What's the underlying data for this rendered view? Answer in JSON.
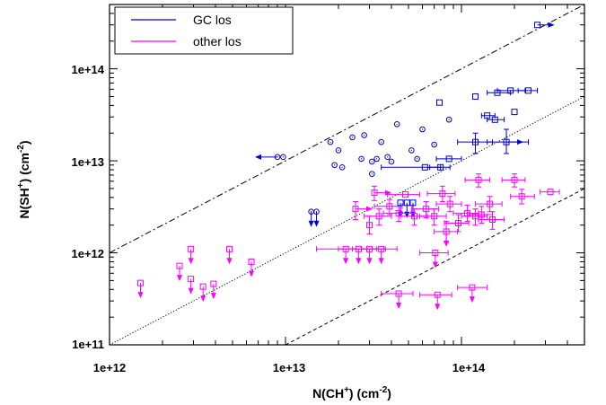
{
  "chart_data": {
    "type": "scatter",
    "xscale": "log",
    "yscale": "log",
    "xlim": [
      1000000000000.0,
      500000000000000.0
    ],
    "ylim": [
      100000000000.0,
      500000000000000.0
    ],
    "xticks": [
      1000000000000.0,
      10000000000000.0,
      100000000000000.0
    ],
    "yticks": [
      100000000000.0,
      1000000000000.0,
      10000000000000.0,
      100000000000000.0
    ],
    "xtick_labels": [
      "1e+12",
      "1e+13",
      "1e+14"
    ],
    "ytick_labels": [
      "1e+11",
      "1e+12",
      "1e+13",
      "1e+14"
    ],
    "xlabel": {
      "base": "N(CH",
      "sup": "+",
      "unit": ")  (cm",
      "exp": "-2",
      "end": ")"
    },
    "ylabel": {
      "base": "N(SH",
      "sup": "+",
      "unit": ")  (cm",
      "exp": "-2",
      "end": ")"
    },
    "legend": {
      "position": "top-left",
      "entries": [
        {
          "label": "GC los",
          "color": "#0000cc"
        },
        {
          "label": "other los",
          "color": "#ff00ff"
        }
      ]
    },
    "reference_lines": [
      {
        "style": "dash-dot",
        "ratio": 1.0
      },
      {
        "style": "dotted",
        "ratio": 0.1
      },
      {
        "style": "dashed",
        "ratio": 0.01
      }
    ],
    "series": [
      {
        "name": "GC los",
        "color": "#0000cc",
        "points": [
          {
            "x": 270000000000000.0,
            "y": 300000000000000.0,
            "marker": "square",
            "lim": "right"
          },
          {
            "x": 75000000000000.0,
            "y": 43000000000000.0,
            "marker": "square"
          },
          {
            "x": 120000000000000.0,
            "y": 50000000000000.0,
            "marker": "square"
          },
          {
            "x": 160000000000000.0,
            "y": 55000000000000.0,
            "marker": "square",
            "xerr": [
              140000000000000.0,
              190000000000000.0
            ]
          },
          {
            "x": 190000000000000.0,
            "y": 58000000000000.0,
            "marker": "square",
            "xerr": [
              160000000000000.0,
              230000000000000.0
            ]
          },
          {
            "x": 240000000000000.0,
            "y": 58000000000000.0,
            "marker": "square",
            "xerr": [
              210000000000000.0,
              270000000000000.0
            ]
          },
          {
            "x": 140000000000000.0,
            "y": 31000000000000.0,
            "marker": "square",
            "xerr": [
              130000000000000.0,
              155000000000000.0
            ]
          },
          {
            "x": 155000000000000.0,
            "y": 28000000000000.0,
            "marker": "square",
            "xerr": [
              140000000000000.0,
              175000000000000.0
            ]
          },
          {
            "x": 200000000000000.0,
            "y": 34000000000000.0,
            "marker": "square"
          },
          {
            "x": 120000000000000.0,
            "y": 16000000000000.0,
            "marker": "square",
            "xerr": [
              95000000000000.0,
              150000000000000.0
            ],
            "yerr": [
              12000000000000.0,
              20000000000000.0
            ]
          },
          {
            "x": 180000000000000.0,
            "y": 16000000000000.0,
            "marker": "square",
            "xerr": [
              140000000000000.0,
              240000000000000.0
            ],
            "yerr": [
              12000000000000.0,
              22000000000000.0
            ],
            "lim": "right"
          },
          {
            "x": 85000000000000.0,
            "y": 28000000000000.0,
            "marker": "circle"
          },
          {
            "x": 9000000000000.0,
            "y": 11000000000000.0,
            "marker": "circle",
            "lim": "left"
          },
          {
            "x": 9700000000000.0,
            "y": 11000000000000.0,
            "marker": "circle"
          },
          {
            "x": 14000000000000.0,
            "y": 2800000000000.0,
            "marker": "circle",
            "lim": "down"
          },
          {
            "x": 15000000000000.0,
            "y": 2800000000000.0,
            "marker": "circle",
            "lim": "down"
          },
          {
            "x": 18000000000000.0,
            "y": 16000000000000.0,
            "marker": "circle"
          },
          {
            "x": 20000000000000.0,
            "y": 13000000000000.0,
            "marker": "circle"
          },
          {
            "x": 24000000000000.0,
            "y": 18000000000000.0,
            "marker": "circle"
          },
          {
            "x": 28000000000000.0,
            "y": 19000000000000.0,
            "marker": "circle"
          },
          {
            "x": 35000000000000.0,
            "y": 16000000000000.0,
            "marker": "circle"
          },
          {
            "x": 43000000000000.0,
            "y": 25000000000000.0,
            "marker": "circle"
          },
          {
            "x": 52000000000000.0,
            "y": 13000000000000.0,
            "marker": "circle"
          },
          {
            "x": 60000000000000.0,
            "y": 22000000000000.0,
            "marker": "circle"
          },
          {
            "x": 70000000000000.0,
            "y": 15000000000000.0,
            "marker": "circle"
          },
          {
            "x": 19000000000000.0,
            "y": 9000000000000.0,
            "marker": "circle"
          },
          {
            "x": 21000000000000.0,
            "y": 8500000000000.0,
            "marker": "circle"
          },
          {
            "x": 27000000000000.0,
            "y": 10500000000000.0,
            "marker": "circle"
          },
          {
            "x": 31000000000000.0,
            "y": 9800000000000.0,
            "marker": "circle"
          },
          {
            "x": 33000000000000.0,
            "y": 10500000000000.0,
            "marker": "circle"
          },
          {
            "x": 38000000000000.0,
            "y": 11000000000000.0,
            "marker": "circle"
          },
          {
            "x": 40000000000000.0,
            "y": 9800000000000.0,
            "marker": "circle"
          },
          {
            "x": 56000000000000.0,
            "y": 10500000000000.0,
            "marker": "circle"
          },
          {
            "x": 31000000000000.0,
            "y": 7200000000000.0,
            "marker": "circle"
          },
          {
            "x": 62000000000000.0,
            "y": 8500000000000.0,
            "marker": "square",
            "xerr": [
              35000000000000.0,
              76000000000000.0
            ]
          },
          {
            "x": 76000000000000.0,
            "y": 8500000000000.0,
            "marker": "square",
            "xerr": [
              66000000000000.0,
              86000000000000.0
            ]
          },
          {
            "x": 85000000000000.0,
            "y": 10500000000000.0,
            "marker": "square",
            "xerr": [
              72000000000000.0,
              100000000000000.0
            ]
          },
          {
            "x": 45000000000000.0,
            "y": 3500000000000.0,
            "marker": "square",
            "lim": "down"
          },
          {
            "x": 49000000000000.0,
            "y": 3500000000000.0,
            "marker": "square",
            "lim": "down"
          },
          {
            "x": 53000000000000.0,
            "y": 3500000000000.0,
            "marker": "square",
            "lim": "down"
          }
        ]
      },
      {
        "name": "other los",
        "color": "#ff00ff",
        "points": [
          {
            "x": 1500000000000.0,
            "y": 470000000000.0,
            "marker": "square",
            "lim": "down"
          },
          {
            "x": 2500000000000.0,
            "y": 720000000000.0,
            "marker": "square",
            "lim": "down"
          },
          {
            "x": 2900000000000.0,
            "y": 1100000000000.0,
            "marker": "square",
            "lim": "down"
          },
          {
            "x": 2900000000000.0,
            "y": 520000000000.0,
            "marker": "square",
            "lim": "down"
          },
          {
            "x": 3400000000000.0,
            "y": 430000000000.0,
            "marker": "square",
            "lim": "down"
          },
          {
            "x": 3900000000000.0,
            "y": 460000000000.0,
            "marker": "square",
            "lim": "down"
          },
          {
            "x": 4800000000000.0,
            "y": 1100000000000.0,
            "marker": "square",
            "lim": "down"
          },
          {
            "x": 6400000000000.0,
            "y": 800000000000.0,
            "marker": "square",
            "lim": "down"
          },
          {
            "x": 22000000000000.0,
            "y": 1100000000000.0,
            "marker": "square",
            "lim": "down",
            "xerr": [
              15000000000000.0,
              29000000000000.0
            ]
          },
          {
            "x": 26000000000000.0,
            "y": 1100000000000.0,
            "marker": "square",
            "lim": "down",
            "xerr": [
              20000000000000.0,
              33000000000000.0
            ]
          },
          {
            "x": 30000000000000.0,
            "y": 1100000000000.0,
            "marker": "square",
            "lim": "down",
            "xerr": [
              24000000000000.0,
              37000000000000.0
            ]
          },
          {
            "x": 35000000000000.0,
            "y": 1100000000000.0,
            "marker": "square",
            "lim": "down",
            "xerr": [
              27000000000000.0,
              43000000000000.0
            ]
          },
          {
            "x": 44000000000000.0,
            "y": 360000000000.0,
            "marker": "square",
            "lim": "down",
            "xerr": [
              35000000000000.0,
              53000000000000.0
            ]
          },
          {
            "x": 73000000000000.0,
            "y": 350000000000.0,
            "marker": "square",
            "lim": "down",
            "xerr": [
              58000000000000.0,
              88000000000000.0
            ]
          },
          {
            "x": 115000000000000.0,
            "y": 420000000000.0,
            "marker": "square",
            "lim": "down",
            "xerr": [
              95000000000000.0,
              140000000000000.0
            ]
          },
          {
            "x": 71000000000000.0,
            "y": 1000000000000.0,
            "marker": "square",
            "lim": "down",
            "xerr": [
              58000000000000.0,
              84000000000000.0
            ]
          },
          {
            "x": 82000000000000.0,
            "y": 1700000000000.0,
            "marker": "square",
            "lim": "down",
            "xerr": [
              70000000000000.0,
              95000000000000.0
            ],
            "yerr": [
              1300000000000.0,
              2200000000000.0
            ]
          },
          {
            "x": 25000000000000.0,
            "y": 3000000000000.0,
            "marker": "square",
            "lim": "right",
            "yerr": [
              2300000000000.0,
              3600000000000.0
            ]
          },
          {
            "x": 32000000000000.0,
            "y": 4500000000000.0,
            "marker": "square",
            "lim": "right",
            "yerr": [
              3700000000000.0,
              5300000000000.0
            ]
          },
          {
            "x": 48000000000000.0,
            "y": 4300000000000.0,
            "marker": "square",
            "xerr": [
              38000000000000.0,
              58000000000000.0
            ]
          },
          {
            "x": 30000000000000.0,
            "y": 2000000000000.0,
            "marker": "square",
            "yerr": [
              1600000000000.0,
              2500000000000.0
            ]
          },
          {
            "x": 34000000000000.0,
            "y": 2500000000000.0,
            "marker": "square",
            "xerr": [
              28000000000000.0,
              40000000000000.0
            ],
            "yerr": [
              2000000000000.0,
              3000000000000.0
            ]
          },
          {
            "x": 39000000000000.0,
            "y": 3200000000000.0,
            "marker": "square",
            "xerr": [
              32000000000000.0,
              46000000000000.0
            ],
            "yerr": [
              2600000000000.0,
              3800000000000.0
            ]
          },
          {
            "x": 44000000000000.0,
            "y": 2700000000000.0,
            "marker": "square",
            "xerr": [
              36000000000000.0,
              52000000000000.0
            ],
            "yerr": [
              2200000000000.0,
              3200000000000.0
            ]
          },
          {
            "x": 54000000000000.0,
            "y": 2500000000000.0,
            "marker": "square",
            "xerr": [
              45000000000000.0,
              64000000000000.0
            ],
            "yerr": [
              2000000000000.0,
              3000000000000.0
            ]
          },
          {
            "x": 63000000000000.0,
            "y": 3000000000000.0,
            "marker": "square",
            "xerr": [
              52000000000000.0,
              74000000000000.0
            ],
            "yerr": [
              2400000000000.0,
              3600000000000.0
            ]
          },
          {
            "x": 70000000000000.0,
            "y": 2500000000000.0,
            "marker": "square",
            "xerr": [
              58000000000000.0,
              82000000000000.0
            ],
            "yerr": [
              2000000000000.0,
              3000000000000.0
            ]
          },
          {
            "x": 78000000000000.0,
            "y": 4400000000000.0,
            "marker": "square",
            "xerr": [
              64000000000000.0,
              92000000000000.0
            ],
            "yerr": [
              3600000000000.0,
              5300000000000.0
            ]
          },
          {
            "x": 86000000000000.0,
            "y": 3400000000000.0,
            "marker": "square",
            "xerr": [
              72000000000000.0,
              100000000000000.0
            ],
            "yerr": [
              2800000000000.0,
              4100000000000.0
            ]
          },
          {
            "x": 96000000000000.0,
            "y": 2100000000000.0,
            "marker": "square",
            "xerr": [
              80000000000000.0,
              110000000000000.0
            ],
            "yerr": [
              1700000000000.0,
              2600000000000.0
            ]
          },
          {
            "x": 108000000000000.0,
            "y": 2700000000000.0,
            "marker": "square",
            "xerr": [
              90000000000000.0,
              125000000000000.0
            ],
            "yerr": [
              2200000000000.0,
              3300000000000.0
            ]
          },
          {
            "x": 120000000000000.0,
            "y": 2500000000000.0,
            "marker": "square",
            "xerr": [
              100000000000000.0,
              140000000000000.0
            ],
            "yerr": [
              2000000000000.0,
              3000000000000.0
            ]
          },
          {
            "x": 130000000000000.0,
            "y": 2600000000000.0,
            "marker": "square",
            "xerr": [
              110000000000000.0,
              150000000000000.0
            ],
            "yerr": [
              2100000000000.0,
              3200000000000.0
            ]
          },
          {
            "x": 145000000000000.0,
            "y": 3400000000000.0,
            "marker": "square",
            "xerr": [
              120000000000000.0,
              170000000000000.0
            ],
            "yerr": [
              2800000000000.0,
              4100000000000.0
            ]
          },
          {
            "x": 150000000000000.0,
            "y": 2300000000000.0,
            "marker": "square",
            "xerr": [
              125000000000000.0,
              175000000000000.0
            ],
            "yerr": [
              1800000000000.0,
              2800000000000.0
            ]
          },
          {
            "x": 125000000000000.0,
            "y": 6200000000000.0,
            "marker": "square",
            "xerr": [
              105000000000000.0,
              145000000000000.0
            ],
            "yerr": [
              5200000000000.0,
              7200000000000.0
            ]
          },
          {
            "x": 200000000000000.0,
            "y": 6200000000000.0,
            "marker": "square",
            "xerr": [
              170000000000000.0,
              230000000000000.0
            ],
            "yerr": [
              5200000000000.0,
              7200000000000.0
            ]
          },
          {
            "x": 220000000000000.0,
            "y": 4100000000000.0,
            "marker": "square",
            "xerr": [
              190000000000000.0,
              260000000000000.0
            ],
            "yerr": [
              3400000000000.0,
              4900000000000.0
            ]
          },
          {
            "x": 320000000000000.0,
            "y": 4600000000000.0,
            "marker": "square",
            "xerr": [
              280000000000000.0,
              360000000000000.0
            ]
          }
        ]
      }
    ]
  }
}
